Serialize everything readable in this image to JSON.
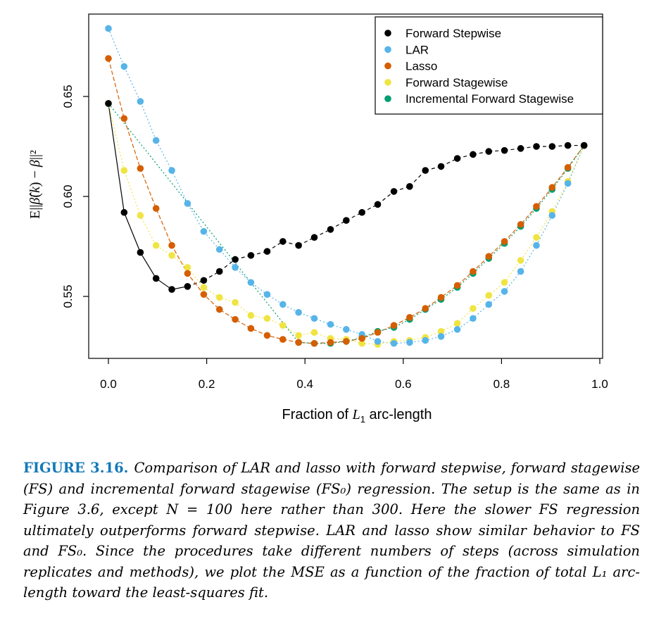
{
  "chart_data": {
    "type": "scatter",
    "title": "",
    "xlabel": "Fraction of L1 arc-length",
    "ylabel": "E||β̂(k) − β||²",
    "xlim": [
      0.0,
      1.0
    ],
    "ylim": [
      0.518,
      0.688
    ],
    "xticks": [
      0.0,
      0.2,
      0.4,
      0.6,
      0.8,
      1.0
    ],
    "xtick_labels": [
      "0.0",
      "0.2",
      "0.4",
      "0.6",
      "0.8",
      "1.0"
    ],
    "yticks": [
      0.55,
      0.6,
      0.65
    ],
    "ytick_labels": [
      "0.55",
      "0.60",
      "0.65"
    ],
    "legend_position": "top-right",
    "x": [
      0.0,
      0.032,
      0.065,
      0.097,
      0.129,
      0.161,
      0.194,
      0.226,
      0.258,
      0.29,
      0.323,
      0.355,
      0.387,
      0.419,
      0.452,
      0.484,
      0.516,
      0.548,
      0.581,
      0.613,
      0.645,
      0.677,
      0.71,
      0.742,
      0.774,
      0.806,
      0.839,
      0.871,
      0.903,
      0.935,
      0.968
    ],
    "series": [
      {
        "name": "Forward Stepwise",
        "color": "#000000",
        "line": "solid-dash",
        "values": [
          0.6465,
          0.592,
          0.572,
          0.559,
          0.5535,
          0.555,
          0.558,
          0.5625,
          0.5685,
          0.5705,
          0.5725,
          0.5775,
          0.5755,
          0.5795,
          0.5835,
          0.588,
          0.592,
          0.596,
          0.6025,
          0.605,
          0.613,
          0.615,
          0.619,
          0.621,
          0.6225,
          0.623,
          0.624,
          0.625,
          0.625,
          0.6255,
          0.6255
        ]
      },
      {
        "name": "LAR",
        "color": "#56b4e9",
        "line": "dotted",
        "values": [
          0.684,
          0.665,
          0.6475,
          0.628,
          0.613,
          0.5965,
          0.5825,
          0.5735,
          0.5645,
          0.557,
          0.551,
          0.546,
          0.542,
          0.539,
          0.536,
          0.5335,
          0.531,
          0.5275,
          0.5265,
          0.527,
          0.528,
          0.53,
          0.5335,
          0.539,
          0.546,
          0.5525,
          0.5625,
          0.5755,
          0.5905,
          0.6065,
          0.6255
        ]
      },
      {
        "name": "Lasso",
        "color": "#d55e00",
        "line": "dashed",
        "values": [
          0.669,
          0.639,
          0.614,
          0.594,
          0.5755,
          0.5615,
          0.551,
          0.5435,
          0.5385,
          0.534,
          0.5305,
          0.5285,
          0.527,
          0.5265,
          0.527,
          0.5275,
          0.529,
          0.532,
          0.5355,
          0.5395,
          0.544,
          0.5495,
          0.5555,
          0.5625,
          0.57,
          0.5775,
          0.586,
          0.595,
          0.6045,
          0.6145,
          0.6255
        ]
      },
      {
        "name": "Forward Stagewise",
        "color": "#f0e442",
        "line": "dotted",
        "values": [
          0.6465,
          0.613,
          0.5905,
          0.5755,
          0.5705,
          0.5645,
          0.5545,
          0.5495,
          0.547,
          0.5405,
          0.539,
          0.5355,
          0.5305,
          0.532,
          0.529,
          0.5285,
          0.5265,
          0.526,
          0.5275,
          0.528,
          0.5295,
          0.5325,
          0.5365,
          0.544,
          0.5505,
          0.557,
          0.568,
          0.5795,
          0.5925,
          0.6075,
          0.6255
        ]
      },
      {
        "name": "Incremental Forward Stagewise",
        "color": "#009e73",
        "line": "dotted",
        "values": [
          0.6465,
          null,
          null,
          null,
          null,
          null,
          null,
          null,
          null,
          null,
          null,
          null,
          0.527,
          0.5265,
          0.5265,
          0.5275,
          0.5295,
          0.5325,
          0.5345,
          0.5385,
          0.5435,
          0.5485,
          0.5545,
          0.5615,
          0.569,
          0.5765,
          0.585,
          0.594,
          0.6035,
          0.614,
          0.6255
        ]
      }
    ]
  },
  "caption": {
    "label": "FIGURE 3.16.",
    "text": "Comparison of LAR and lasso with forward stepwise, forward stagewise (FS) and incremental forward stagewise (FS₀) regression. The setup is the same as in Figure 3.6, except N = 100 here rather than 300. Here the slower FS regression ultimately outperforms forward stepwise. LAR and lasso show similar behavior to FS and FS₀. Since the procedures take different numbers of steps (across simulation replicates and methods), we plot the MSE as a function of the fraction of total L₁ arc-length toward the least-squares fit."
  }
}
